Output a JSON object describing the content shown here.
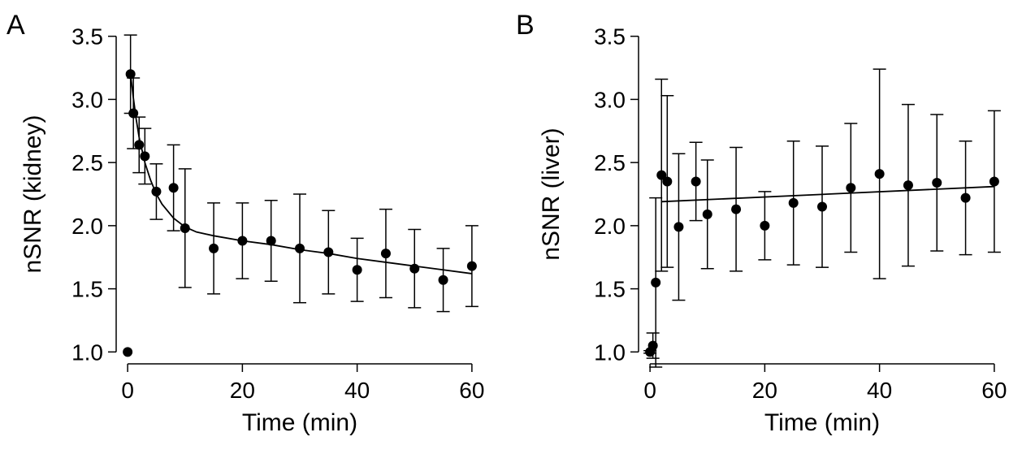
{
  "chart_data": [
    {
      "type": "scatter",
      "panel_label": "A",
      "xlabel": "Time (min)",
      "ylabel": "nSNR (kidney)",
      "xlim": [
        -2,
        62
      ],
      "ylim": [
        0.97,
        3.53
      ],
      "xticks": [
        0,
        20,
        40,
        60
      ],
      "xtick_labels": [
        "0",
        "20",
        "40",
        "60"
      ],
      "yticks": [
        1.0,
        1.5,
        2.0,
        2.5,
        3.0,
        3.5
      ],
      "ytick_labels": [
        "1.0",
        "1.5",
        "2.0",
        "2.5",
        "3.0",
        "3.5"
      ],
      "grid": false,
      "series": [
        {
          "name": "data",
          "x": [
            0,
            0.5,
            1,
            2,
            3,
            5,
            8,
            10,
            15,
            20,
            25,
            30,
            35,
            40,
            45,
            50,
            55,
            60
          ],
          "y": [
            1.0,
            3.2,
            2.89,
            2.64,
            2.55,
            2.27,
            2.3,
            1.98,
            1.82,
            1.88,
            1.88,
            1.82,
            1.79,
            1.65,
            1.78,
            1.66,
            1.57,
            1.68
          ],
          "err": [
            0,
            0.31,
            0.28,
            0.22,
            0.22,
            0.22,
            0.34,
            0.47,
            0.36,
            0.3,
            0.32,
            0.43,
            0.33,
            0.25,
            0.35,
            0.31,
            0.25,
            0.32
          ]
        },
        {
          "name": "fit",
          "x": [
            0.5,
            1,
            1.5,
            2,
            3,
            4,
            5,
            6,
            8,
            10,
            12,
            15,
            20,
            25,
            30,
            35,
            40,
            45,
            50,
            55,
            60
          ],
          "y": [
            3.2,
            3.01,
            2.84,
            2.7,
            2.5,
            2.36,
            2.25,
            2.17,
            2.06,
            1.99,
            1.95,
            1.92,
            1.88,
            1.85,
            1.81,
            1.78,
            1.74,
            1.71,
            1.68,
            1.65,
            1.62
          ]
        }
      ]
    },
    {
      "type": "scatter",
      "panel_label": "B",
      "xlabel": "Time (min)",
      "ylabel": "nSNR (liver)",
      "xlim": [
        -2,
        62
      ],
      "ylim": [
        0.97,
        3.53
      ],
      "xticks": [
        0,
        20,
        40,
        60
      ],
      "xtick_labels": [
        "0",
        "20",
        "40",
        "60"
      ],
      "yticks": [
        1.0,
        1.5,
        2.0,
        2.5,
        3.0,
        3.5
      ],
      "ytick_labels": [
        "1.0",
        "1.5",
        "2.0",
        "2.5",
        "3.0",
        "3.5"
      ],
      "grid": false,
      "series": [
        {
          "name": "data",
          "x": [
            0,
            0.5,
            1,
            2,
            3,
            5,
            8,
            10,
            15,
            20,
            25,
            30,
            35,
            40,
            45,
            50,
            55,
            60
          ],
          "y": [
            1.0,
            1.05,
            1.55,
            2.4,
            2.35,
            1.99,
            2.35,
            2.09,
            2.13,
            2.0,
            2.18,
            2.15,
            2.3,
            2.41,
            2.32,
            2.34,
            2.22,
            2.35
          ],
          "err": [
            0.01,
            0.1,
            0.67,
            0.76,
            0.68,
            0.58,
            0.31,
            0.43,
            0.49,
            0.27,
            0.49,
            0.48,
            0.51,
            0.83,
            0.64,
            0.54,
            0.45,
            0.56
          ]
        },
        {
          "name": "fit",
          "x": [
            2,
            60
          ],
          "y": [
            2.19,
            2.31
          ]
        }
      ]
    }
  ]
}
